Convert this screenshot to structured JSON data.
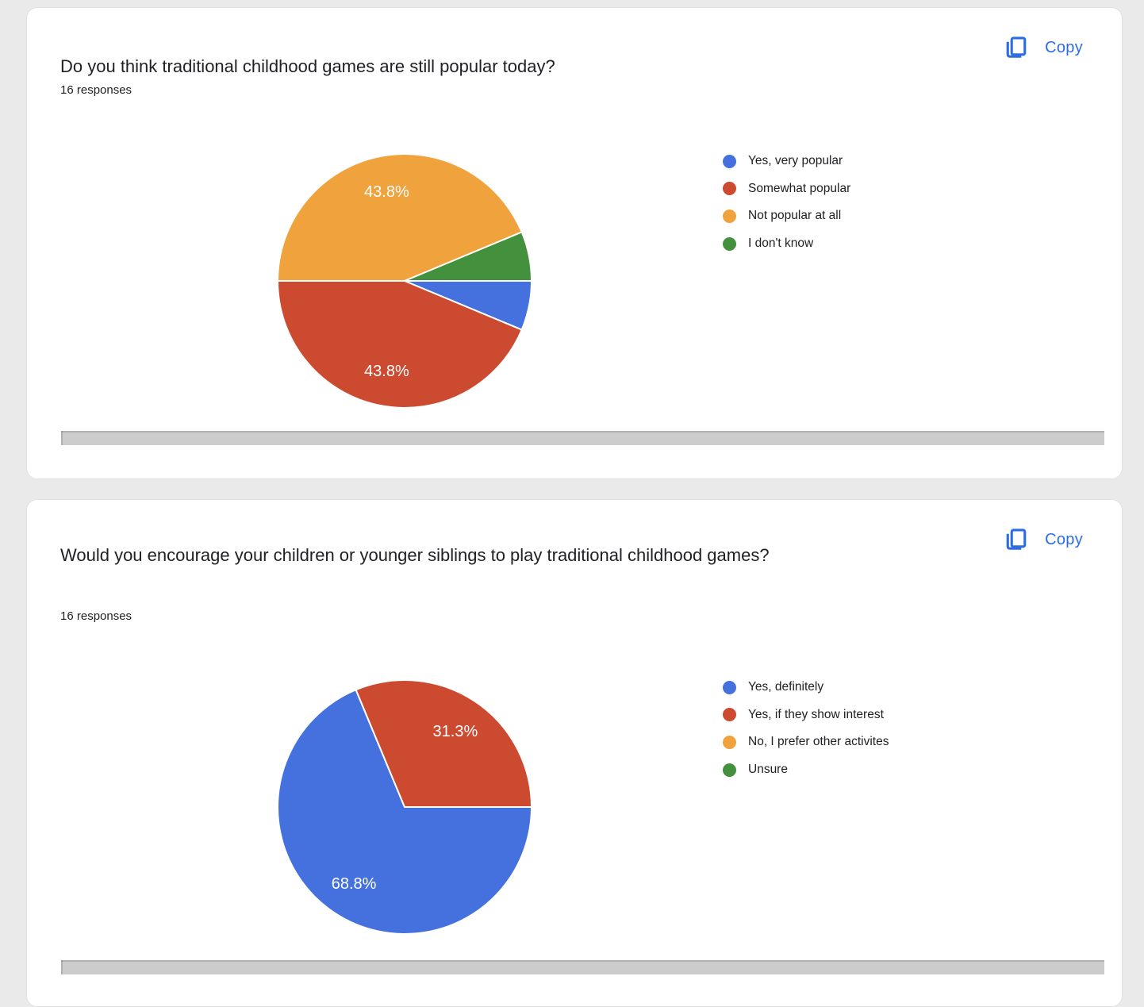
{
  "palette": {
    "blue": "#4471DD",
    "red": "#CC4B30",
    "orange": "#F0A33C",
    "green": "#43913C"
  },
  "ui": {
    "page_bg": "#EAEAEA",
    "copy_label": "Copy",
    "copy_color": "#2D6DE4",
    "scrollbar_color": "#CCCCCC",
    "card_bg": "#FFFFFF",
    "text_color": "#202124",
    "pie_label_color": "#FFFFFF"
  },
  "chart_data": [
    {
      "type": "pie",
      "title": "Do you think traditional childhood games are still popular today?",
      "responses_label": "16 responses",
      "legend_position": "right",
      "start_angle_deg_from_east_clockwise": 0,
      "slices": [
        {
          "label": "Yes, very popular",
          "color": "blue",
          "percent": 6.3,
          "percent_label": null
        },
        {
          "label": "Somewhat popular",
          "color": "red",
          "percent": 43.8,
          "percent_label": "43.8%"
        },
        {
          "label": "Not popular at all",
          "color": "orange",
          "percent": 43.8,
          "percent_label": "43.8%"
        },
        {
          "label": "I don't know",
          "color": "green",
          "percent": 6.3,
          "percent_label": null
        }
      ]
    },
    {
      "type": "pie",
      "title": "Would you encourage your children or younger siblings to play traditional childhood games?",
      "responses_label": "16 responses",
      "legend_position": "right",
      "start_angle_deg_from_east_clockwise": 0,
      "slices": [
        {
          "label": "Yes, definitely",
          "color": "blue",
          "percent": 68.8,
          "percent_label": "68.8%"
        },
        {
          "label": "Yes, if they show interest",
          "color": "red",
          "percent": 31.3,
          "percent_label": "31.3%"
        },
        {
          "label": "No, I prefer other activites",
          "color": "orange",
          "percent": 0,
          "percent_label": null
        },
        {
          "label": "Unsure",
          "color": "green",
          "percent": 0,
          "percent_label": null
        }
      ]
    }
  ]
}
